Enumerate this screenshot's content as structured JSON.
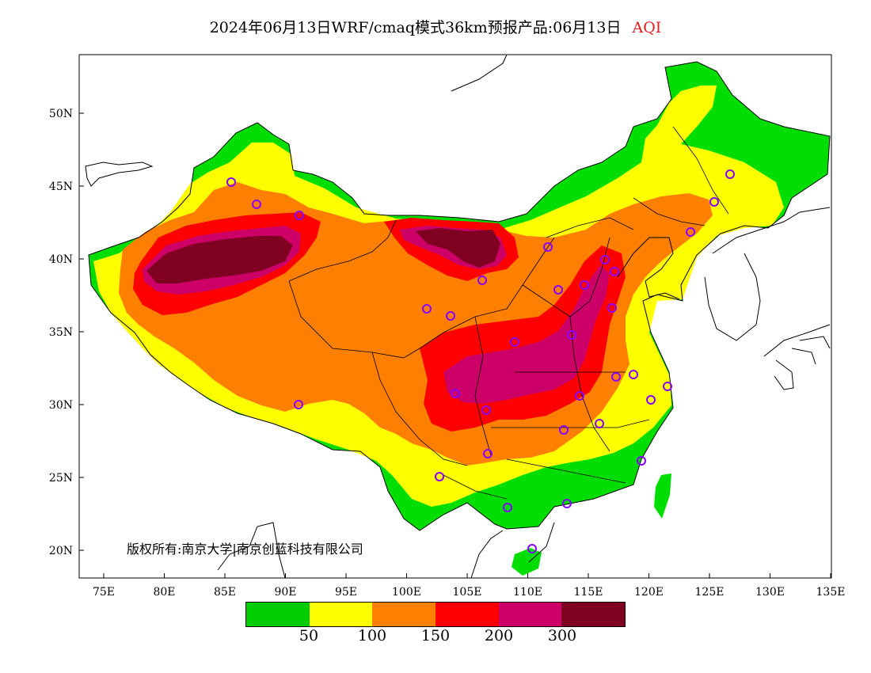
{
  "title": {
    "main": "2024年06月13日WRF/cmaq模式36km预报产品:06月13日",
    "variable": "AQI"
  },
  "axes": {
    "lat_labels": [
      "50N",
      "45N",
      "40N",
      "35N",
      "30N",
      "25N",
      "20N"
    ],
    "lon_labels": [
      "75E",
      "80E",
      "85E",
      "90E",
      "95E",
      "100E",
      "105E",
      "110E",
      "115E",
      "120E",
      "125E",
      "130E",
      "135E"
    ]
  },
  "copyright": "版权所有:南京大学|南京创蓝科技有限公司",
  "legend": {
    "colors": [
      "#00cc00",
      "#ffff00",
      "#ff8000",
      "#ff0000",
      "#cc0066",
      "#800020"
    ],
    "labels": [
      "50",
      "100",
      "150",
      "200",
      "300"
    ]
  },
  "colors": {
    "good": "#00dd00",
    "moderate": "#ffff00",
    "usg": "#ff8000",
    "unhealthy": "#ff0000",
    "very_unhealthy": "#cc0066",
    "hazardous": "#7f0020",
    "marker": "#8800ff"
  }
}
